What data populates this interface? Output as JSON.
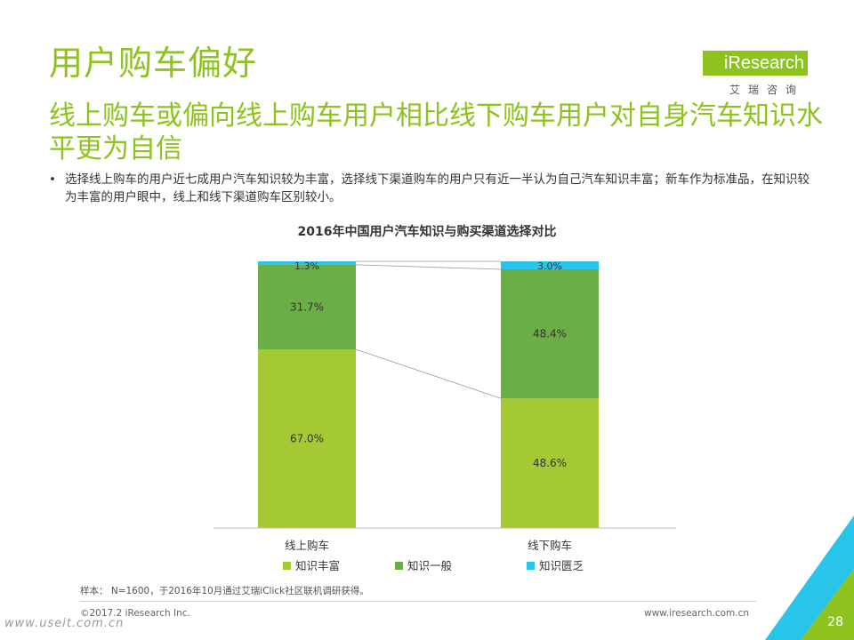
{
  "header": {
    "title": "用户购车偏好",
    "subtitle": "线上购车或偏向线上购车用户相比线下购车用户对自身汽车知识水平更为自信"
  },
  "logo": {
    "word": "iResearch",
    "cn": "艾瑞咨询"
  },
  "bullet": {
    "symbol": "•",
    "text": "选择线上购车的用户近七成用户汽车知识较为丰富，选择线下渠道购车的用户只有近一半认为自己汽车知识丰富；新车作为标准品，在知识较为丰富的用户眼中，线上和线下渠道购车区别较小。"
  },
  "chart_data": {
    "type": "bar",
    "stacked": true,
    "percent": true,
    "title": "2016年中国用户汽车知识与购买渠道选择对比",
    "categories": [
      "线上购车",
      "线下购车"
    ],
    "series": [
      {
        "name": "知识丰富",
        "values": [
          67.0,
          48.6
        ],
        "labels": [
          "67.0%",
          "48.6%"
        ],
        "color": "#a5c932"
      },
      {
        "name": "知识一般",
        "values": [
          31.7,
          48.4
        ],
        "labels": [
          "31.7%",
          "48.4%"
        ],
        "color": "#6aae45"
      },
      {
        "name": "知识匮乏",
        "values": [
          1.3,
          3.0
        ],
        "labels": [
          "1.3%",
          "3.0%"
        ],
        "color": "#29c4ea"
      }
    ],
    "ylim": [
      0,
      100
    ],
    "legend": "bottom",
    "grid": false
  },
  "note": "样本： N=1600，于2016年10月通过艾瑞iClick社区联机调研获得。",
  "footer": {
    "copyright": "©2017.2 iResearch Inc.",
    "url": "www.iresearch.com.cn",
    "page": "28",
    "watermark": "www.useit.com.cn"
  }
}
